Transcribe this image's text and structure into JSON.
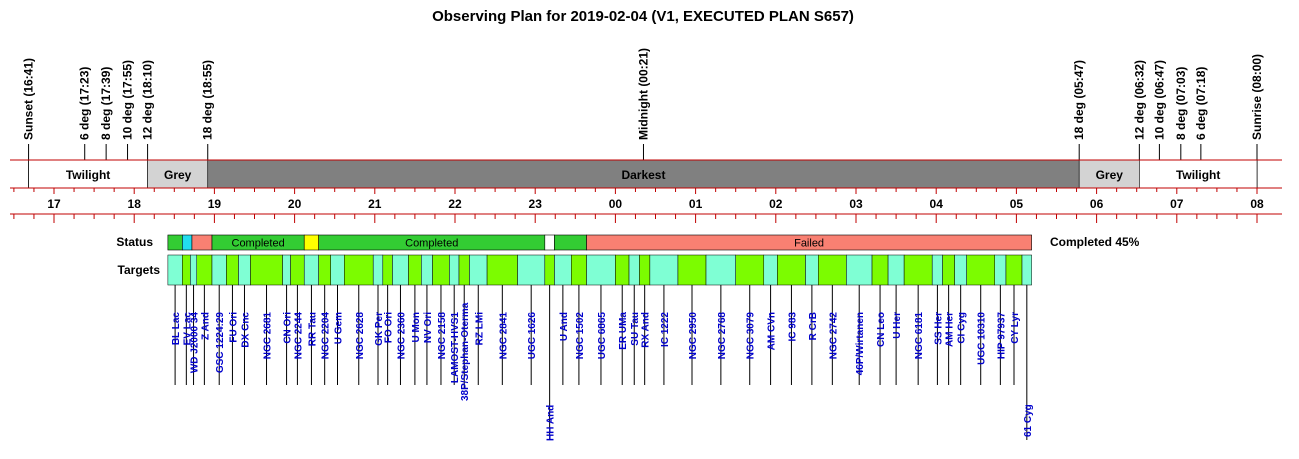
{
  "title": "Observing Plan for 2019-02-04 (V1, EXECUTED PLAN S657)",
  "colors": {
    "twilight": "#ffffff",
    "grey": "#d3d3d3",
    "darkest": "#808080",
    "red_line": "#c00000",
    "completed": "#33cc33",
    "failed": "#f98072",
    "cyan": "#22ddee",
    "yellow": "#ffff00",
    "target_a": "#7fffd4",
    "target_b": "#7cfc00",
    "target_text": "#0000cc"
  },
  "axis": {
    "start_hour": 16.5,
    "end_hour": 32.1
  },
  "events": [
    {
      "label": "Sunset (16:41)",
      "hour": 16.683
    },
    {
      "label": "6 deg (17:23)",
      "hour": 17.383
    },
    {
      "label": "8 deg (17:39)",
      "hour": 17.65
    },
    {
      "label": "10 deg (17:55)",
      "hour": 17.917
    },
    {
      "label": "12 deg (18:10)",
      "hour": 18.167
    },
    {
      "label": "18 deg (18:55)",
      "hour": 18.917
    },
    {
      "label": "Midnight (00:21)",
      "hour": 24.35
    },
    {
      "label": "18 deg (05:47)",
      "hour": 29.783
    },
    {
      "label": "12 deg (06:32)",
      "hour": 30.533
    },
    {
      "label": "10 deg (06:47)",
      "hour": 30.783
    },
    {
      "label": "8 deg (07:03)",
      "hour": 31.05
    },
    {
      "label": "6 deg (07:18)",
      "hour": 31.3
    },
    {
      "label": "Sunrise (08:00)",
      "hour": 32.0
    }
  ],
  "periods": [
    {
      "label": "Twilight",
      "start": 16.683,
      "end": 18.167,
      "kind": "twilight"
    },
    {
      "label": "Grey",
      "start": 18.167,
      "end": 18.917,
      "kind": "grey"
    },
    {
      "label": "Darkest",
      "start": 18.917,
      "end": 29.783,
      "kind": "darkest"
    },
    {
      "label": "Grey",
      "start": 29.783,
      "end": 30.533,
      "kind": "grey"
    },
    {
      "label": "Twilight",
      "start": 30.533,
      "end": 32.0,
      "kind": "twilight"
    }
  ],
  "hour_labels": [
    "17",
    "18",
    "19",
    "20",
    "21",
    "22",
    "23",
    "00",
    "01",
    "02",
    "03",
    "04",
    "05",
    "06",
    "07",
    "08"
  ],
  "hour_values": [
    17,
    18,
    19,
    20,
    21,
    22,
    23,
    24,
    25,
    26,
    27,
    28,
    29,
    30,
    31,
    32
  ],
  "status_label": "Status",
  "targets_label": "Targets",
  "completion": "Completed 45%",
  "status_segments": [
    {
      "start": 18.42,
      "end": 18.6,
      "kind": "completed",
      "label": ""
    },
    {
      "start": 18.6,
      "end": 18.72,
      "kind": "cyan",
      "label": ""
    },
    {
      "start": 18.72,
      "end": 18.97,
      "kind": "failed",
      "label": ""
    },
    {
      "start": 18.97,
      "end": 20.12,
      "kind": "completed",
      "label": "Completed"
    },
    {
      "start": 20.12,
      "end": 20.3,
      "kind": "yellow",
      "label": ""
    },
    {
      "start": 20.3,
      "end": 23.12,
      "kind": "completed",
      "label": "Completed"
    },
    {
      "start": 23.12,
      "end": 23.24,
      "kind": "blank",
      "label": ""
    },
    {
      "start": 23.24,
      "end": 23.64,
      "kind": "completed",
      "label": ""
    },
    {
      "start": 23.64,
      "end": 29.19,
      "kind": "failed",
      "label": "Failed"
    }
  ],
  "targets": [
    {
      "name": "BL Lac",
      "start": 18.42,
      "end": 18.6
    },
    {
      "name": "EV Lac",
      "start": 18.6,
      "end": 18.7
    },
    {
      "name": "WD J2000 34",
      "start": 18.7,
      "end": 18.78
    },
    {
      "name": "Z And",
      "start": 18.78,
      "end": 18.97
    },
    {
      "name": "GSC 1224:29",
      "start": 18.97,
      "end": 19.15
    },
    {
      "name": "FU Ori",
      "start": 19.15,
      "end": 19.3
    },
    {
      "name": "DX Cnc",
      "start": 19.3,
      "end": 19.45
    },
    {
      "name": "NGC 2681",
      "start": 19.45,
      "end": 19.85
    },
    {
      "name": "CN Ori",
      "start": 19.85,
      "end": 19.95
    },
    {
      "name": "NGC 2244",
      "start": 19.95,
      "end": 20.12
    },
    {
      "name": "RR Tau",
      "start": 20.12,
      "end": 20.3
    },
    {
      "name": "NGC 2204",
      "start": 20.3,
      "end": 20.45
    },
    {
      "name": "U Gem",
      "start": 20.45,
      "end": 20.62
    },
    {
      "name": "NGC 2628",
      "start": 20.62,
      "end": 20.98
    },
    {
      "name": "GK Per",
      "start": 20.98,
      "end": 21.1
    },
    {
      "name": "FO Ori",
      "start": 21.1,
      "end": 21.22
    },
    {
      "name": "NGC 2360",
      "start": 21.22,
      "end": 21.42
    },
    {
      "name": "U Mon",
      "start": 21.42,
      "end": 21.58
    },
    {
      "name": "NV Ori",
      "start": 21.58,
      "end": 21.72
    },
    {
      "name": "NGC 2158",
      "start": 21.72,
      "end": 21.93
    },
    {
      "name": "LAMOST-HVS1",
      "start": 21.93,
      "end": 22.05
    },
    {
      "name": "38P/Stephan-Oterma",
      "start": 22.05,
      "end": 22.18
    },
    {
      "name": "RZ LMi",
      "start": 22.18,
      "end": 22.4
    },
    {
      "name": "NGC 2841",
      "start": 22.4,
      "end": 22.78
    },
    {
      "name": "UGC 1626",
      "start": 22.78,
      "end": 23.12
    },
    {
      "name": "HH And",
      "start": 23.12,
      "end": 23.24
    },
    {
      "name": "U And",
      "start": 23.24,
      "end": 23.45
    },
    {
      "name": "NGC 1502",
      "start": 23.45,
      "end": 23.64
    },
    {
      "name": "UGC 6865",
      "start": 23.64,
      "end": 24.0
    },
    {
      "name": "ER UMa",
      "start": 24.0,
      "end": 24.17
    },
    {
      "name": "SU Tau",
      "start": 24.17,
      "end": 24.3
    },
    {
      "name": "RX And",
      "start": 24.3,
      "end": 24.43
    },
    {
      "name": "IC 1222",
      "start": 24.43,
      "end": 24.78
    },
    {
      "name": "NGC 2950",
      "start": 24.78,
      "end": 25.13
    },
    {
      "name": "NGC 2768",
      "start": 25.13,
      "end": 25.5
    },
    {
      "name": "NGC 3079",
      "start": 25.5,
      "end": 25.85
    },
    {
      "name": "AM CVn",
      "start": 25.85,
      "end": 26.02
    },
    {
      "name": "IC 983",
      "start": 26.02,
      "end": 26.37
    },
    {
      "name": "R CrB",
      "start": 26.37,
      "end": 26.53
    },
    {
      "name": "NGC 2742",
      "start": 26.53,
      "end": 26.88
    },
    {
      "name": "46P/Wirtanen",
      "start": 26.88,
      "end": 27.2
    },
    {
      "name": "CN Leo",
      "start": 27.2,
      "end": 27.4
    },
    {
      "name": "U Her",
      "start": 27.4,
      "end": 27.6
    },
    {
      "name": "NGC 6181",
      "start": 27.6,
      "end": 27.95
    },
    {
      "name": "SS Her",
      "start": 27.95,
      "end": 28.08
    },
    {
      "name": "AM Her",
      "start": 28.08,
      "end": 28.23
    },
    {
      "name": "CI Cyg",
      "start": 28.23,
      "end": 28.38
    },
    {
      "name": "UGC 10310",
      "start": 28.38,
      "end": 28.73
    },
    {
      "name": "HIP 97937",
      "start": 28.73,
      "end": 28.87
    },
    {
      "name": "CY Lyr",
      "start": 28.87,
      "end": 29.07
    },
    {
      "name": "61 Cyg",
      "start": 29.07,
      "end": 29.19
    }
  ]
}
